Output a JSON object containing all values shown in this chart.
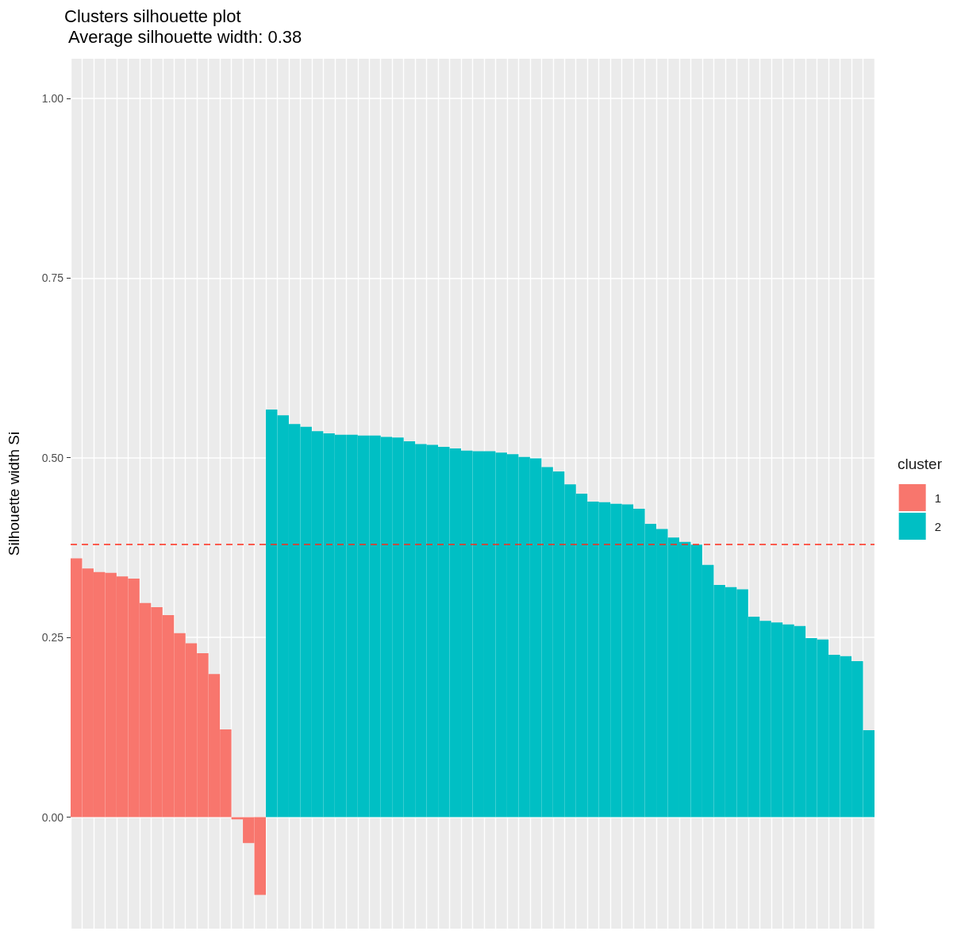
{
  "chart_data": {
    "type": "bar",
    "title": "Clusters silhouette plot",
    "subtitle": " Average silhouette width: 0.38",
    "ylabel": "Silhouette width Si",
    "legend_title": "cluster",
    "categories": [
      null,
      null,
      null,
      null,
      null,
      null,
      null,
      null,
      null,
      null,
      null,
      null,
      null,
      null,
      null,
      null,
      null,
      null,
      null,
      null,
      null,
      null,
      null,
      null,
      null,
      null,
      null,
      null,
      null,
      null,
      null,
      null,
      null,
      null,
      null,
      null,
      null,
      null,
      null,
      null,
      null,
      null,
      null,
      null,
      null,
      null,
      null,
      null,
      null,
      null,
      null,
      null,
      null,
      null,
      null,
      null,
      null,
      null,
      null,
      null,
      null,
      null,
      null,
      null,
      null,
      null,
      null,
      null,
      null,
      null
    ],
    "series": [
      {
        "name": "1",
        "color": "#f8766d",
        "values": [
          0.36,
          0.346,
          0.341,
          0.34,
          0.335,
          0.332,
          0.298,
          0.292,
          0.281,
          0.256,
          0.242,
          0.228,
          0.199,
          0.122,
          -0.003,
          -0.036,
          -0.108,
          null,
          null,
          null,
          null,
          null,
          null,
          null,
          null,
          null,
          null,
          null,
          null,
          null,
          null,
          null,
          null,
          null,
          null,
          null,
          null,
          null,
          null,
          null,
          null,
          null,
          null,
          null,
          null,
          null,
          null,
          null,
          null,
          null,
          null,
          null,
          null,
          null,
          null,
          null,
          null,
          null,
          null,
          null,
          null,
          null,
          null,
          null,
          null,
          null,
          null,
          null,
          null,
          null
        ]
      },
      {
        "name": "2",
        "color": "#00bfc4",
        "values": [
          null,
          null,
          null,
          null,
          null,
          null,
          null,
          null,
          null,
          null,
          null,
          null,
          null,
          null,
          null,
          null,
          null,
          0.567,
          0.559,
          0.547,
          0.543,
          0.537,
          0.534,
          0.532,
          0.532,
          0.531,
          0.531,
          0.529,
          0.528,
          0.523,
          0.519,
          0.518,
          0.515,
          0.513,
          0.51,
          0.509,
          0.509,
          0.507,
          0.505,
          0.501,
          0.499,
          0.487,
          0.481,
          0.463,
          0.45,
          0.439,
          0.438,
          0.436,
          0.435,
          0.429,
          0.408,
          0.401,
          0.389,
          0.383,
          0.379,
          0.351,
          0.323,
          0.32,
          0.317,
          0.279,
          0.273,
          0.271,
          0.268,
          0.266,
          0.249,
          0.247,
          0.226,
          0.224,
          0.217,
          0.121
        ]
      }
    ],
    "ylim": [
      -0.155,
      1.055
    ],
    "yticks": [
      {
        "value": 0,
        "label": "0.00"
      },
      {
        "value": 0.25,
        "label": "0.25"
      },
      {
        "value": 0.5,
        "label": "0.50"
      },
      {
        "value": 0.75,
        "label": "0.75"
      },
      {
        "value": 1,
        "label": "1.00"
      }
    ],
    "ref_lines": [
      {
        "axis": "y",
        "value": 0.376,
        "color": "#ff2b1a",
        "line_style": "dashed"
      }
    ],
    "grid": true,
    "legend": "right",
    "tick_labels": "y"
  }
}
